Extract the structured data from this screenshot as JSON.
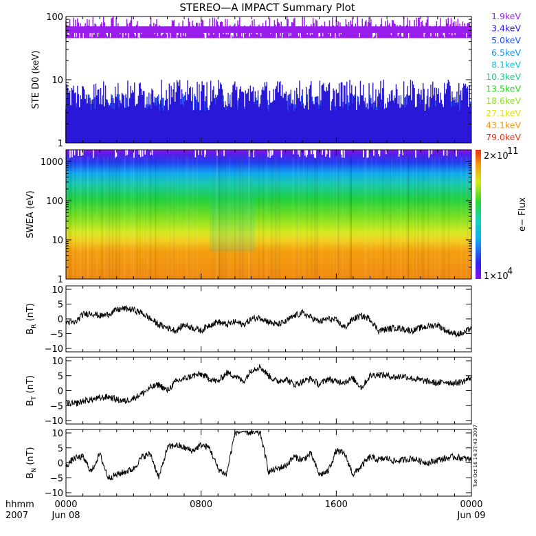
{
  "title": "STEREO—A IMPACT Summary Plot",
  "x_axis": {
    "ticks": [
      "0000",
      "0800",
      "1600",
      "0000"
    ],
    "sublabels": [
      "Jun 08",
      "",
      "",
      "Jun 09"
    ],
    "left_label_top": "hhmm",
    "left_label_bottom": "2007"
  },
  "side_stamp": "Tue Oct 16 14:37:43 2007",
  "colors": {
    "axis": "#000000",
    "trace": "#000000"
  },
  "chart_data": [
    {
      "type": "line",
      "ylabel": "STE D0 (keV)",
      "yscale": "log",
      "ylim": [
        1,
        100
      ],
      "yticks": [
        "1",
        "10",
        "100"
      ],
      "xlim_hours": [
        0,
        24
      ],
      "series": [
        {
          "name": "1.9keV",
          "color": "#9a1dee",
          "band": [
            45,
            100
          ]
        },
        {
          "name": "3.4keV",
          "color": "#2a18d8",
          "band": [
            3.2,
            10
          ]
        },
        {
          "name": "5.0keV",
          "color": "#1c50ee",
          "band": [
            2.7,
            6
          ]
        },
        {
          "name": "6.5keV",
          "color": "#1890f0",
          "band": [
            2.3,
            4
          ]
        },
        {
          "name": "8.1keV",
          "color": "#10c8d8",
          "band": [
            2.0,
            3.0
          ]
        },
        {
          "name": "10.3keV",
          "color": "#10d090",
          "band": [
            1.9,
            2.5
          ]
        },
        {
          "name": "13.5keV",
          "color": "#22d822",
          "band": [
            1.8,
            2.2
          ]
        },
        {
          "name": "18.6keV",
          "color": "#90e020",
          "band": [
            1.7,
            2.0
          ]
        },
        {
          "name": "27.1keV",
          "color": "#e0e010",
          "band": [
            1.4,
            1.8
          ]
        },
        {
          "name": "43.1keV",
          "color": "#f09810",
          "band": [
            1.2,
            1.6
          ]
        },
        {
          "name": "79.0keV",
          "color": "#e83010",
          "band": [
            1.0,
            1.4
          ]
        }
      ]
    },
    {
      "type": "heatmap",
      "ylabel": "SWEA (eV)",
      "yscale": "log",
      "ylim": [
        1,
        2000
      ],
      "yticks": [
        "1",
        "10",
        "100",
        "1000"
      ],
      "colorbar": {
        "label": "e− Flux",
        "max_label": "2×10",
        "max_exp": "11",
        "min_label": "1×10",
        "min_exp": "4"
      },
      "xlim_hours": [
        0,
        24
      ]
    },
    {
      "type": "line",
      "ylabel": "B",
      "ylabel_sub": "R",
      "ylabel_unit": " (nT)",
      "ylim": [
        -10,
        10
      ],
      "yticks": [
        "−10",
        "−5",
        "0",
        "5",
        "10"
      ],
      "x": [
        0,
        0.5,
        1.0,
        1.5,
        2.0,
        2.5,
        3.0,
        3.5,
        4.0,
        4.5,
        5.0,
        5.5,
        6.0,
        6.5,
        7.0,
        7.5,
        8.0,
        8.5,
        9.0,
        9.5,
        10.0,
        10.5,
        11.0,
        11.5,
        12.0,
        12.5,
        13.0,
        13.5,
        14.0,
        14.5,
        15.0,
        15.5,
        16.0,
        16.5,
        17.0,
        17.5,
        18.0,
        18.5,
        19.0,
        19.5,
        20.0,
        20.5,
        21.0,
        21.5,
        22.0,
        22.5,
        23.0,
        23.5,
        24.0
      ],
      "values": [
        -1,
        -1.5,
        1.5,
        2,
        1,
        1.5,
        3,
        3.5,
        3,
        2,
        0,
        -2,
        -3,
        -4,
        -2,
        -3,
        -4,
        -2,
        -1,
        -2,
        -1,
        -2,
        0,
        0.5,
        -1,
        -2,
        -1,
        1,
        2,
        0.5,
        -1,
        0,
        -0.5,
        -3,
        0,
        1,
        0,
        -4,
        -3.5,
        -3,
        -3.5,
        -4,
        -3,
        -2.5,
        -2,
        -4,
        -5,
        -5,
        -3
      ]
    },
    {
      "type": "line",
      "ylabel": "B",
      "ylabel_sub": "T",
      "ylabel_unit": " (nT)",
      "ylim": [
        -10,
        10
      ],
      "yticks": [
        "−10",
        "−5",
        "0",
        "5",
        "10"
      ],
      "x": [
        0,
        0.5,
        1.0,
        1.5,
        2.0,
        2.5,
        3.0,
        3.5,
        4.0,
        4.5,
        5.0,
        5.5,
        6.0,
        6.5,
        7.0,
        7.5,
        8.0,
        8.5,
        9.0,
        9.5,
        10.0,
        10.5,
        11.0,
        11.5,
        12.0,
        12.5,
        13.0,
        13.5,
        14.0,
        14.5,
        15.0,
        15.5,
        16.0,
        16.5,
        17.0,
        17.5,
        18.0,
        18.5,
        19.0,
        19.5,
        20.0,
        20.5,
        21.0,
        21.5,
        22.0,
        22.5,
        23.0,
        23.5,
        24.0
      ],
      "values": [
        -4,
        -4.5,
        -3.5,
        -3,
        -2.5,
        -2,
        -3,
        -3.5,
        -2.5,
        -1,
        1,
        2,
        0,
        3,
        4,
        5,
        5.5,
        4,
        3,
        6,
        5,
        3,
        7,
        8,
        5,
        3,
        4,
        2,
        3,
        4,
        2,
        4,
        3,
        3,
        4,
        1,
        5,
        5.5,
        5,
        4.5,
        5,
        4,
        3.5,
        3,
        2.5,
        3,
        2.5,
        3,
        4.5
      ]
    },
    {
      "type": "line",
      "ylabel": "B",
      "ylabel_sub": "N",
      "ylabel_unit": " (nT)",
      "ylim": [
        -10,
        10
      ],
      "yticks": [
        "−10",
        "−5",
        "0",
        "5",
        "10"
      ],
      "x": [
        0,
        0.5,
        1.0,
        1.5,
        2.0,
        2.5,
        3.0,
        3.5,
        4.0,
        4.5,
        5.0,
        5.5,
        6.0,
        6.5,
        7.0,
        7.5,
        8.0,
        8.5,
        9.0,
        9.5,
        10.0,
        10.5,
        11.0,
        11.5,
        12.0,
        12.5,
        13.0,
        13.5,
        14.0,
        14.5,
        15.0,
        15.5,
        16.0,
        16.5,
        17.0,
        17.5,
        18.0,
        18.5,
        19.0,
        19.5,
        20.0,
        20.5,
        21.0,
        21.5,
        22.0,
        22.5,
        23.0,
        23.5,
        24.0
      ],
      "values": [
        -1,
        1.5,
        2,
        -3,
        3,
        -5,
        -4,
        -3,
        -2,
        2,
        3,
        -5,
        5,
        6,
        5,
        4,
        6,
        5,
        -2,
        -4,
        10,
        10.5,
        10,
        10,
        -3,
        -2,
        -1,
        2,
        1,
        3,
        -4,
        -3,
        4,
        3,
        -4,
        -1,
        2,
        1,
        1.5,
        0.5,
        1,
        1.5,
        0.5,
        0,
        1,
        1.5,
        2,
        1.5,
        1
      ]
    }
  ]
}
